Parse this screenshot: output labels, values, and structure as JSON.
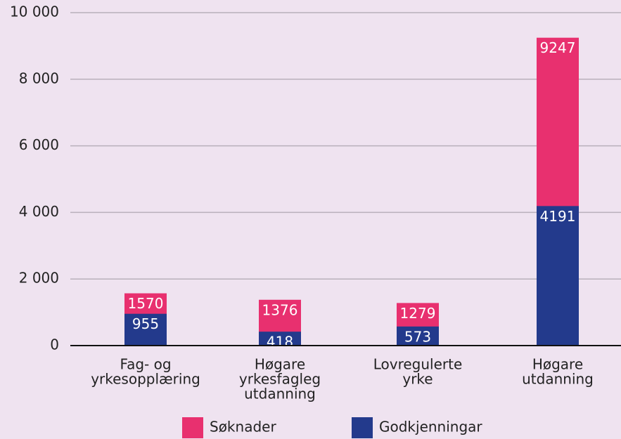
{
  "chart_data": {
    "type": "bar",
    "categories": [
      [
        "Fag- og",
        "yrkesopplæring"
      ],
      [
        "Høgare",
        "yrkesfagleg",
        "utdanning"
      ],
      [
        "Lovregulerte",
        "yrke"
      ],
      [
        "Høgare",
        "utdanning"
      ]
    ],
    "series": [
      {
        "name": "Søknader",
        "color": "#e8306f",
        "values": [
          1570,
          1376,
          1279,
          9247
        ]
      },
      {
        "name": "Godkjenningar",
        "color": "#233a8c",
        "values": [
          955,
          418,
          573,
          4191
        ]
      }
    ],
    "ylim": [
      0,
      10000
    ],
    "yticks": [
      0,
      {
        "value": 2000,
        "label": "2 000"
      },
      {
        "value": 4000,
        "label": "4 000"
      },
      {
        "value": 6000,
        "label": "6 000"
      },
      {
        "value": 8000,
        "label": "8 000"
      },
      {
        "value": 10000,
        "label": "10 000"
      }
    ],
    "grid": true,
    "legend": "bottom"
  }
}
